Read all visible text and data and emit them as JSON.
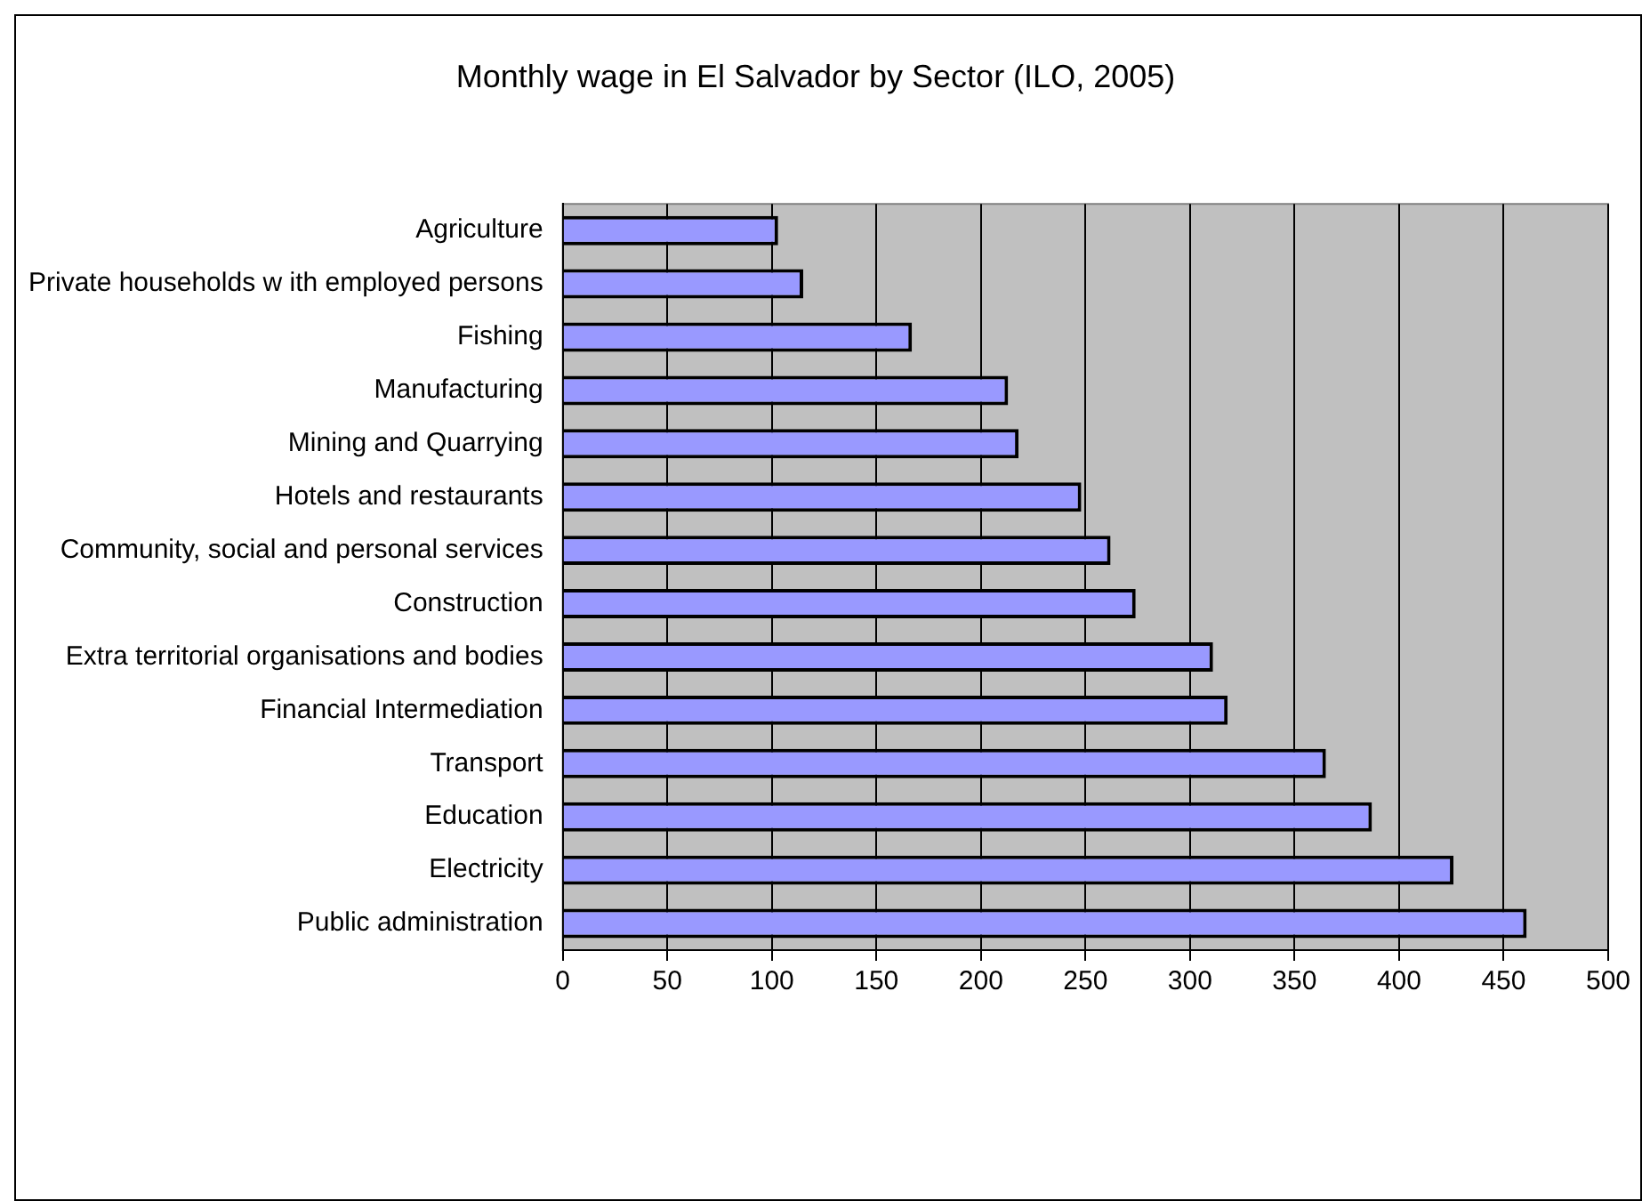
{
  "chart_data": {
    "type": "bar",
    "orientation": "horizontal",
    "title": "Monthly wage in El Salvador by Sector (ILO, 2005)",
    "categories": [
      "Agriculture",
      "Private households w ith employed persons",
      "Fishing",
      "Manufacturing",
      "Mining and Quarrying",
      "Hotels and restaurants",
      "Community, social and personal services",
      "Construction",
      "Extra territorial organisations and bodies",
      "Financial Intermediation",
      "Transport",
      "Education",
      "Electricity",
      "Public administration"
    ],
    "values": [
      103,
      115,
      167,
      213,
      218,
      248,
      262,
      274,
      311,
      318,
      365,
      387,
      426,
      461
    ],
    "color": "#9999ff",
    "xlim": [
      0,
      500
    ],
    "xticks": [
      0,
      50,
      100,
      150,
      200,
      250,
      300,
      350,
      400,
      450,
      500
    ],
    "grid": "x",
    "legend": false
  }
}
